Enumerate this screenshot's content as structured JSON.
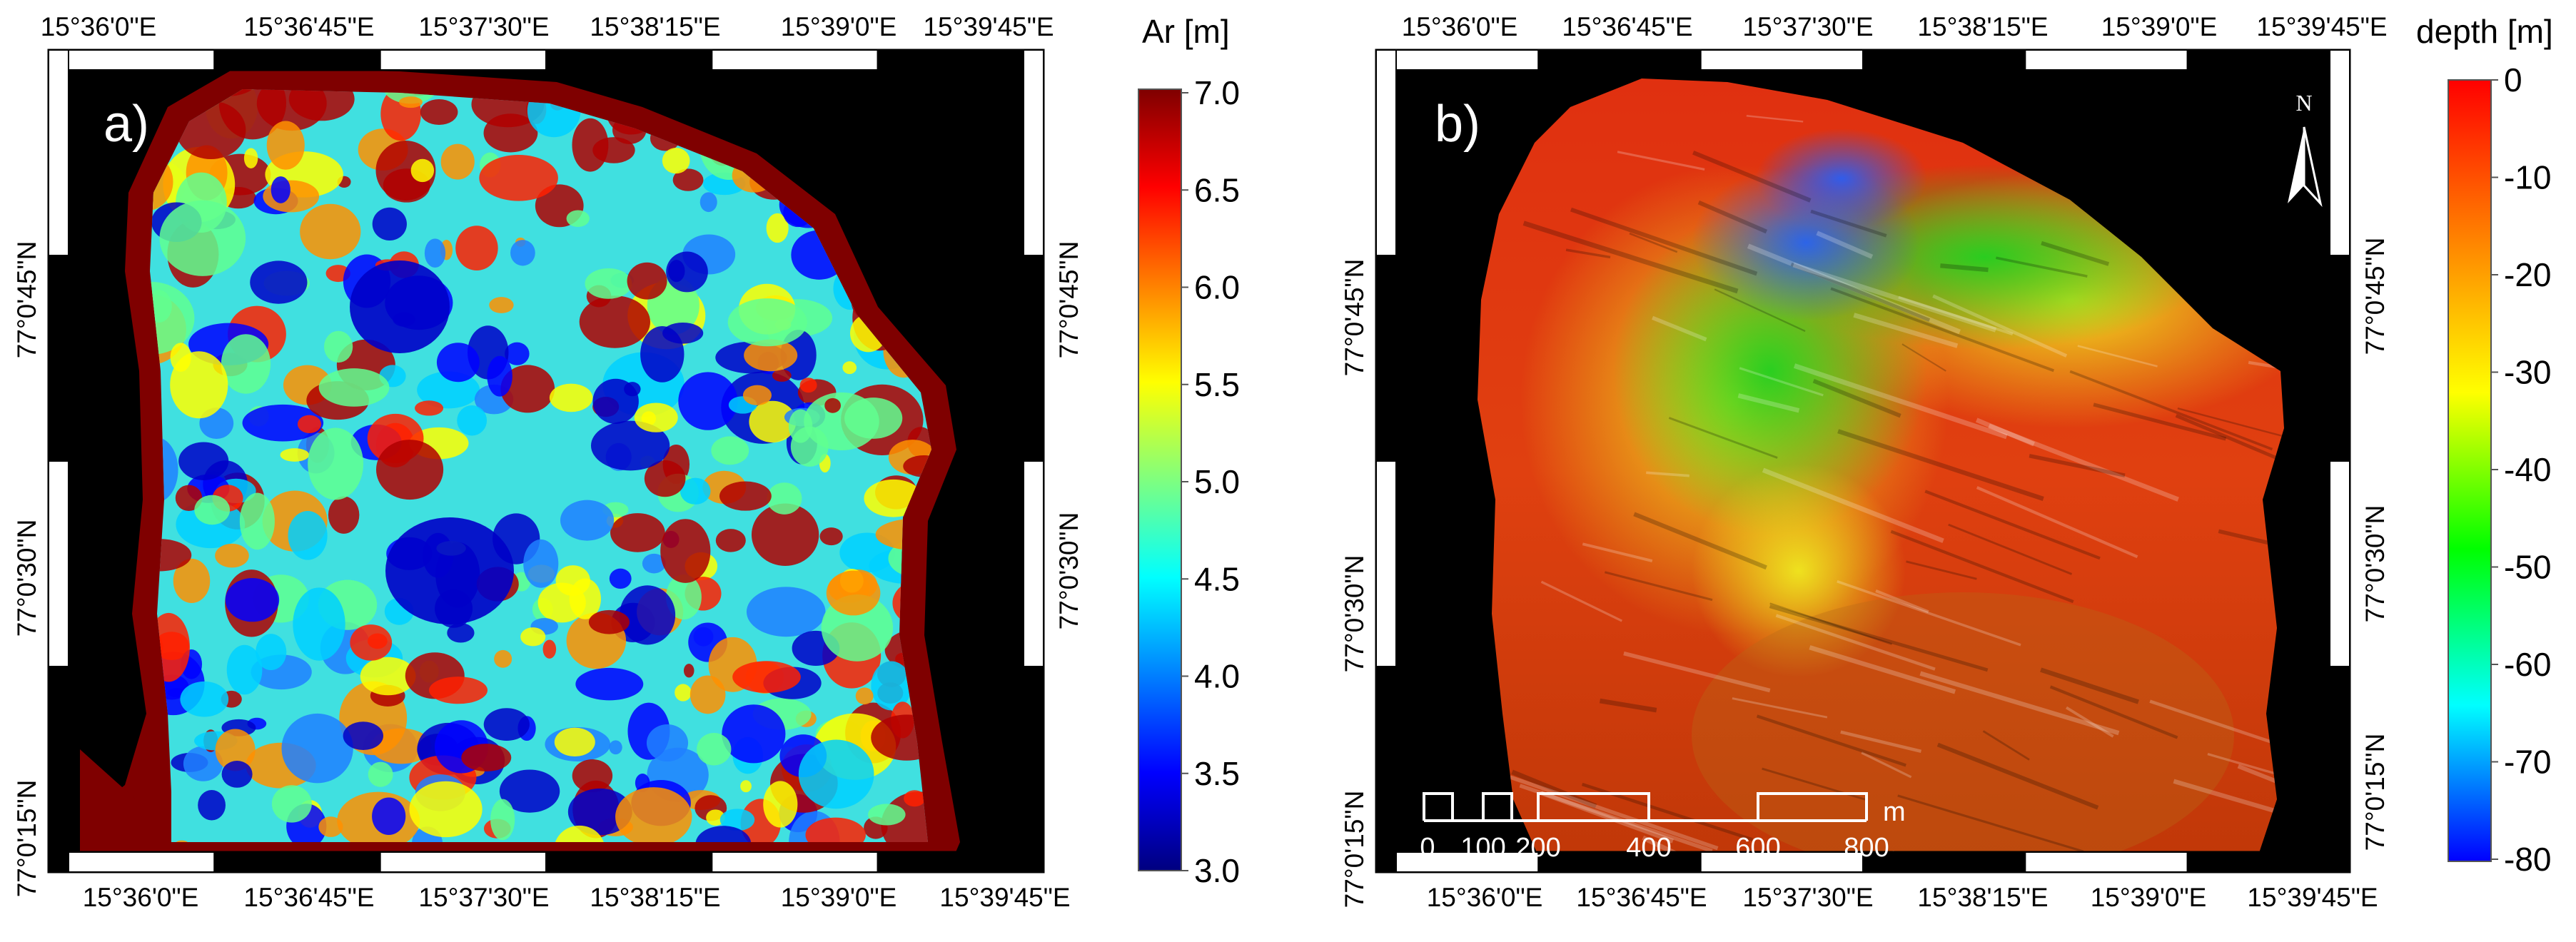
{
  "panels": [
    {
      "id": "a",
      "label": "a)",
      "top_ticks": [
        "15°36'0\"E",
        "15°36'45\"E",
        "15°37'30\"E",
        "15°38'15\"E",
        "15°39'0\"E",
        "15°39'45\"E"
      ],
      "bottom_ticks": [
        "15°36'0\"E",
        "15°36'45\"E",
        "15°37'30\"E",
        "15°38'15\"E",
        "15°39'0\"E",
        "15°39'45\"E"
      ],
      "left_ticks": [
        "77°0'45\"N",
        "77°0'30\"N",
        "77°0'15\"N"
      ],
      "right_ticks": [
        "77°0'45\"N",
        "77°0'30\"N"
      ],
      "colorbar": {
        "title": "Ar [m]",
        "min": 3.0,
        "max": 7.0,
        "ticks": [
          "7.0",
          "6.5",
          "6.0",
          "5.5",
          "5.0",
          "4.5",
          "4.0",
          "3.5",
          "3.0"
        ],
        "colors": [
          "#00007f",
          "#0000ff",
          "#007fff",
          "#00ffff",
          "#7fff7f",
          "#ffff00",
          "#ff7f00",
          "#ff0000",
          "#7f0000"
        ]
      }
    },
    {
      "id": "b",
      "label": "b)",
      "top_ticks": [
        "15°36'0\"E",
        "15°36'45\"E",
        "15°37'30\"E",
        "15°38'15\"E",
        "15°39'0\"E",
        "15°39'45\"E"
      ],
      "bottom_ticks": [
        "15°36'0\"E",
        "15°36'45\"E",
        "15°37'30\"E",
        "15°38'15\"E",
        "15°39'0\"E",
        "15°39'45\"E"
      ],
      "left_ticks": [
        "77°0'45\"N",
        "77°0'30\"N",
        "77°0'15\"N"
      ],
      "right_ticks": [
        "77°0'45\"N",
        "77°0'30\"N",
        "77°0'15\"N"
      ],
      "north_arrow": "N",
      "scale_bar": {
        "labels": [
          "0",
          "100",
          "200",
          "400",
          "600",
          "800"
        ],
        "unit": "m"
      },
      "colorbar": {
        "title": "depth [m]",
        "min": -80,
        "max": 0,
        "ticks": [
          "0",
          "-10",
          "-20",
          "-30",
          "-40",
          "-50",
          "-60",
          "-70",
          "-80"
        ],
        "colors": [
          "#0000ff",
          "#00ffff",
          "#00ff00",
          "#ffff00",
          "#ff8000",
          "#ff0000"
        ]
      }
    }
  ],
  "colors": {
    "background": "#000000",
    "frame": "#ffffff",
    "label_text": "#ffffff"
  }
}
